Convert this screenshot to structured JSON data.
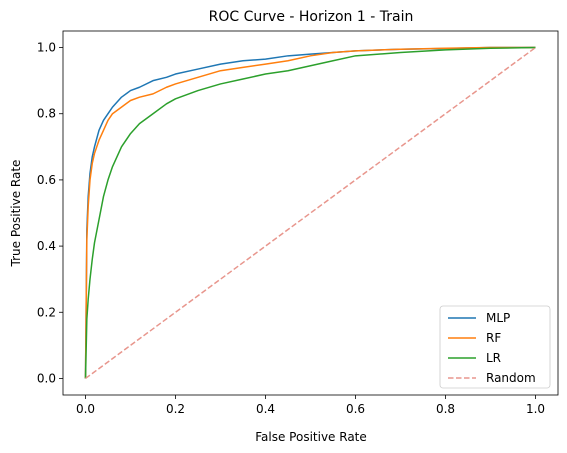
{
  "chart_data": {
    "type": "line",
    "title": "ROC Curve - Horizon 1 - Train",
    "xlabel": "False Positive Rate",
    "ylabel": "True Positive Rate",
    "xlim": [
      -0.05,
      1.05
    ],
    "ylim": [
      -0.05,
      1.05
    ],
    "xticks": [
      "0.0",
      "0.2",
      "0.4",
      "0.6",
      "0.8",
      "1.0"
    ],
    "yticks": [
      "0.0",
      "0.2",
      "0.4",
      "0.6",
      "0.8",
      "1.0"
    ],
    "grid": false,
    "legend_position": "lower-right",
    "series": [
      {
        "name": "MLP",
        "color": "#1f77b4",
        "style": "solid",
        "x": [
          0,
          0.003,
          0.006,
          0.01,
          0.015,
          0.02,
          0.03,
          0.04,
          0.05,
          0.06,
          0.08,
          0.1,
          0.12,
          0.15,
          0.18,
          0.2,
          0.25,
          0.3,
          0.35,
          0.4,
          0.45,
          0.5,
          0.55,
          0.6,
          0.7,
          0.8,
          0.9,
          1.0
        ],
        "y": [
          0,
          0.45,
          0.55,
          0.62,
          0.67,
          0.7,
          0.75,
          0.78,
          0.8,
          0.82,
          0.85,
          0.87,
          0.88,
          0.9,
          0.91,
          0.92,
          0.935,
          0.95,
          0.96,
          0.965,
          0.975,
          0.98,
          0.985,
          0.99,
          0.995,
          0.997,
          1.0,
          1.0
        ]
      },
      {
        "name": "RF",
        "color": "#ff7f0e",
        "style": "solid",
        "x": [
          0,
          0.003,
          0.006,
          0.01,
          0.015,
          0.02,
          0.03,
          0.04,
          0.05,
          0.06,
          0.08,
          0.1,
          0.12,
          0.15,
          0.18,
          0.2,
          0.25,
          0.3,
          0.35,
          0.4,
          0.45,
          0.5,
          0.55,
          0.6,
          0.7,
          0.8,
          0.9,
          1.0
        ],
        "y": [
          0,
          0.42,
          0.52,
          0.6,
          0.65,
          0.68,
          0.72,
          0.75,
          0.78,
          0.8,
          0.82,
          0.84,
          0.85,
          0.86,
          0.88,
          0.89,
          0.91,
          0.93,
          0.94,
          0.95,
          0.96,
          0.975,
          0.985,
          0.99,
          0.995,
          0.998,
          1.0,
          1.0
        ]
      },
      {
        "name": "LR",
        "color": "#2ca02c",
        "style": "solid",
        "x": [
          0,
          0.003,
          0.006,
          0.01,
          0.015,
          0.02,
          0.03,
          0.04,
          0.05,
          0.06,
          0.08,
          0.1,
          0.12,
          0.15,
          0.18,
          0.2,
          0.25,
          0.3,
          0.35,
          0.4,
          0.45,
          0.5,
          0.55,
          0.6,
          0.7,
          0.8,
          0.9,
          1.0
        ],
        "y": [
          0,
          0.18,
          0.24,
          0.3,
          0.36,
          0.41,
          0.48,
          0.55,
          0.6,
          0.64,
          0.7,
          0.74,
          0.77,
          0.8,
          0.83,
          0.845,
          0.87,
          0.89,
          0.905,
          0.92,
          0.93,
          0.945,
          0.96,
          0.975,
          0.985,
          0.993,
          0.998,
          1.0
        ]
      },
      {
        "name": "Random",
        "color": "#e8968d",
        "style": "dashed",
        "x": [
          0,
          1
        ],
        "y": [
          0,
          1
        ]
      }
    ]
  }
}
